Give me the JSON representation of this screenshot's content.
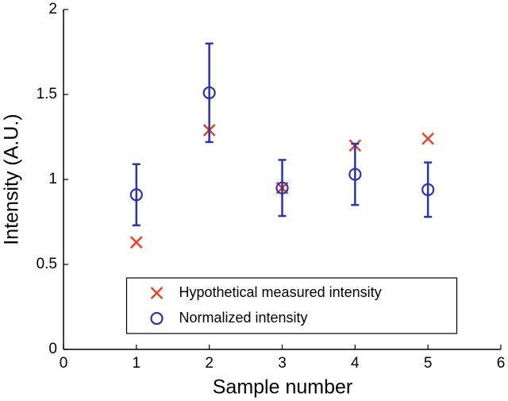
{
  "chart_data": {
    "type": "scatter",
    "x_label": "Sample number",
    "y_label": "Intensity (A.U.)",
    "x": [
      1,
      2,
      3,
      4,
      5
    ],
    "series": [
      {
        "name": "Hypothetical measured intensity",
        "color": "#e8452c",
        "marker": "x",
        "values": [
          0.63,
          1.29,
          0.95,
          1.2,
          1.24
        ]
      },
      {
        "name": "Normalized intensity",
        "color": "#2b35a8",
        "marker": "circle",
        "values": [
          0.91,
          1.51,
          0.95,
          1.03,
          0.94
        ],
        "errors": [
          0.18,
          0.29,
          0.165,
          0.18,
          0.16
        ]
      }
    ],
    "xlim": [
      0,
      6
    ],
    "xticks": [
      0,
      1,
      2,
      3,
      4,
      5,
      6
    ],
    "ylim": [
      0,
      2
    ],
    "yticks": [
      0,
      0.5,
      1,
      1.5,
      2
    ],
    "grid": false,
    "legend_position": "lower center"
  }
}
